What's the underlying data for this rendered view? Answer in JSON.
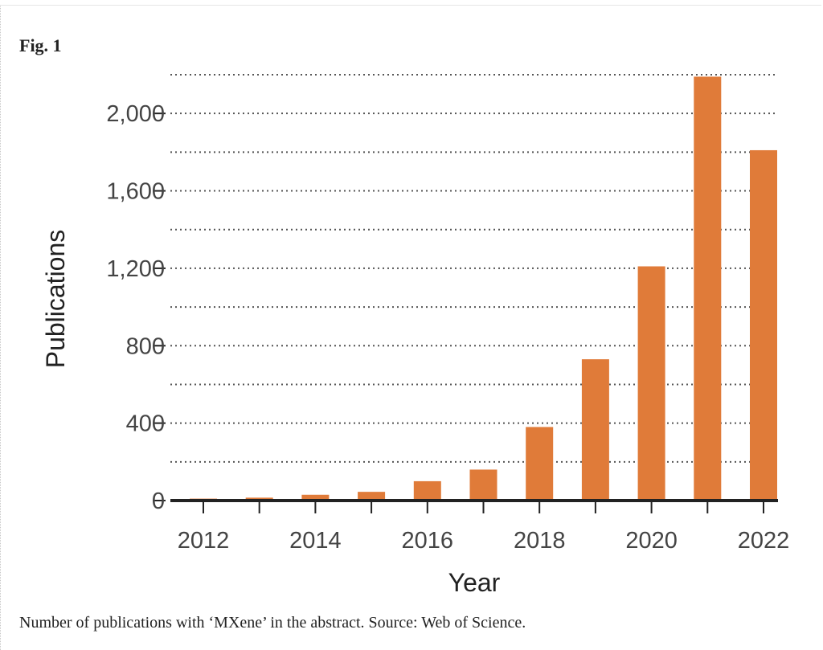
{
  "figure": {
    "label": "Fig. 1",
    "caption": "Number of publications with ‘MXene’ in the abstract. Source: Web of Science."
  },
  "colors": {
    "bar": "#e07b39",
    "grid": "#555555",
    "axis": "#222222"
  },
  "chart_data": {
    "type": "bar",
    "title": "",
    "xlabel": "Year",
    "ylabel": "Publications",
    "categories": [
      "2012",
      "2013",
      "2014",
      "2015",
      "2016",
      "2017",
      "2018",
      "2019",
      "2020",
      "2021",
      "2022"
    ],
    "values": [
      10,
      15,
      30,
      45,
      100,
      160,
      380,
      730,
      1210,
      2190,
      1810
    ],
    "ylim": [
      0,
      2200
    ],
    "yticks": [
      0,
      400,
      800,
      1200,
      1600,
      2000
    ],
    "ytick_labels": [
      "0",
      "400",
      "800",
      "1,200",
      "1,600",
      "2,000"
    ],
    "xtick_labels": [
      "2012",
      "2014",
      "2016",
      "2018",
      "2020",
      "2022"
    ],
    "grid": "dotted horizontal every 200",
    "legend": "none"
  }
}
